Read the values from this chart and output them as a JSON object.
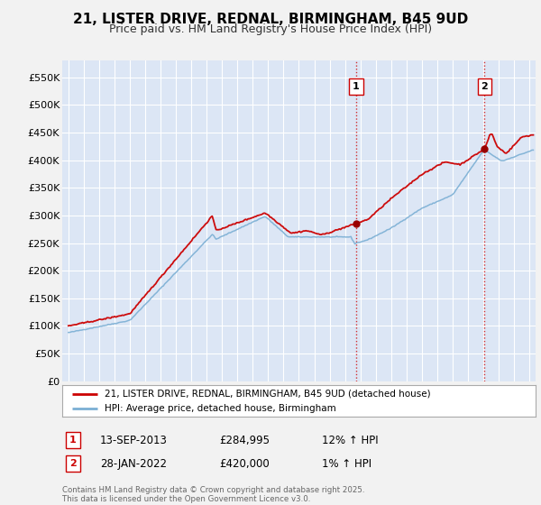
{
  "title": "21, LISTER DRIVE, REDNAL, BIRMINGHAM, B45 9UD",
  "subtitle": "Price paid vs. HM Land Registry's House Price Index (HPI)",
  "background_color": "#f2f2f2",
  "plot_bg_color": "#dce6f5",
  "grid_color": "#ffffff",
  "ylim": [
    0,
    580000
  ],
  "yticks": [
    0,
    50000,
    100000,
    150000,
    200000,
    250000,
    300000,
    350000,
    400000,
    450000,
    500000,
    550000
  ],
  "ytick_labels": [
    "£0",
    "£50K",
    "£100K",
    "£150K",
    "£200K",
    "£250K",
    "£300K",
    "£350K",
    "£400K",
    "£450K",
    "£500K",
    "£550K"
  ],
  "sale1_date": "13-SEP-2013",
  "sale1_price": 284995,
  "sale1_hpi": "12% ↑ HPI",
  "sale1_t": 2013.71,
  "sale2_date": "28-JAN-2022",
  "sale2_price": 420000,
  "sale2_hpi": "1% ↑ HPI",
  "sale2_t": 2022.08,
  "legend_label1": "21, LISTER DRIVE, REDNAL, BIRMINGHAM, B45 9UD (detached house)",
  "legend_label2": "HPI: Average price, detached house, Birmingham",
  "footer": "Contains HM Land Registry data © Crown copyright and database right 2025.\nThis data is licensed under the Open Government Licence v3.0.",
  "red_line_color": "#cc0000",
  "blue_line_color": "#7bafd4",
  "vline_color": "#cc0000",
  "marker_color": "#990000",
  "title_fontsize": 11,
  "subtitle_fontsize": 9
}
